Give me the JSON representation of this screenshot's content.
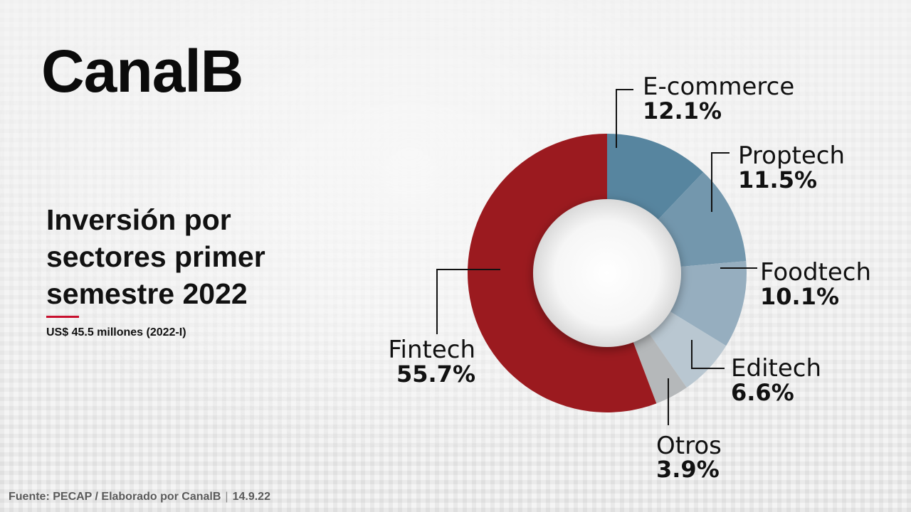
{
  "brand": {
    "logo_text": "CanalB"
  },
  "heading": {
    "title": "Inversión por sectores primer semestre 2022",
    "subtitle": "US$ 45.5 millones (2022-I)",
    "accent_color": "#c8102e"
  },
  "footer": {
    "source": "Fuente: PECAP / Elaborado por CanalB",
    "separator": "|",
    "date": "14.9.22"
  },
  "chart_data": {
    "type": "pie",
    "style": "donut",
    "title": "",
    "slices": [
      {
        "label": "E-commerce",
        "value": 12.1,
        "display": "12.1%",
        "color": "#57859f"
      },
      {
        "label": "Proptech",
        "value": 11.5,
        "display": "11.5%",
        "color": "#7397ad"
      },
      {
        "label": "Foodtech",
        "value": 10.1,
        "display": "10.1%",
        "color": "#96aebf"
      },
      {
        "label": "Editech",
        "value": 6.6,
        "display": "6.6%",
        "color": "#b9c7d1"
      },
      {
        "label": "Otros",
        "value": 3.9,
        "display": "3.9%",
        "color": "#b5b8ba"
      },
      {
        "label": "Fintech",
        "value": 55.7,
        "display": "55.7%",
        "color": "#9b1a1f"
      }
    ]
  }
}
